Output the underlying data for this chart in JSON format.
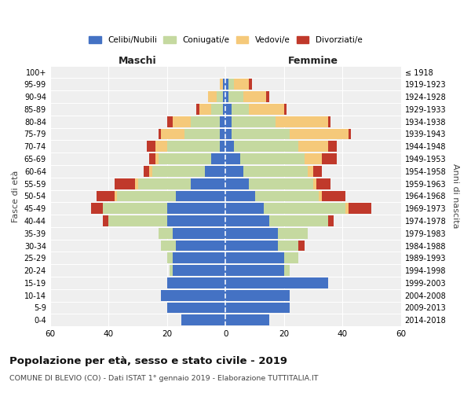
{
  "age_groups": [
    "0-4",
    "5-9",
    "10-14",
    "15-19",
    "20-24",
    "25-29",
    "30-34",
    "35-39",
    "40-44",
    "45-49",
    "50-54",
    "55-59",
    "60-64",
    "65-69",
    "70-74",
    "75-79",
    "80-84",
    "85-89",
    "90-94",
    "95-99",
    "100+"
  ],
  "birth_years": [
    "2014-2018",
    "2009-2013",
    "2004-2008",
    "1999-2003",
    "1994-1998",
    "1989-1993",
    "1984-1988",
    "1979-1983",
    "1974-1978",
    "1969-1973",
    "1964-1968",
    "1959-1963",
    "1954-1958",
    "1949-1953",
    "1944-1948",
    "1939-1943",
    "1934-1938",
    "1929-1933",
    "1924-1928",
    "1919-1923",
    "≤ 1918"
  ],
  "male": {
    "celibi": [
      15,
      20,
      22,
      20,
      18,
      18,
      17,
      18,
      20,
      20,
      17,
      12,
      7,
      5,
      2,
      2,
      2,
      1,
      1,
      1,
      0
    ],
    "coniugati": [
      0,
      0,
      0,
      0,
      1,
      2,
      5,
      5,
      20,
      22,
      20,
      18,
      18,
      18,
      18,
      12,
      10,
      4,
      2,
      0,
      0
    ],
    "vedovi": [
      0,
      0,
      0,
      0,
      0,
      0,
      0,
      0,
      0,
      0,
      1,
      1,
      1,
      1,
      4,
      8,
      6,
      4,
      3,
      1,
      0
    ],
    "divorziati": [
      0,
      0,
      0,
      0,
      0,
      0,
      0,
      0,
      2,
      4,
      6,
      7,
      2,
      2,
      3,
      1,
      2,
      1,
      0,
      0,
      0
    ]
  },
  "female": {
    "nubili": [
      15,
      22,
      22,
      35,
      20,
      20,
      18,
      18,
      15,
      13,
      10,
      8,
      6,
      5,
      3,
      2,
      2,
      2,
      1,
      1,
      0
    ],
    "coniugate": [
      0,
      0,
      0,
      0,
      2,
      5,
      7,
      10,
      20,
      28,
      22,
      22,
      22,
      22,
      22,
      20,
      15,
      6,
      5,
      2,
      0
    ],
    "vedove": [
      0,
      0,
      0,
      0,
      0,
      0,
      0,
      0,
      0,
      1,
      1,
      1,
      2,
      6,
      10,
      20,
      18,
      12,
      8,
      5,
      0
    ],
    "divorziate": [
      0,
      0,
      0,
      0,
      0,
      0,
      2,
      0,
      2,
      8,
      8,
      5,
      3,
      5,
      3,
      1,
      1,
      1,
      1,
      1,
      0
    ]
  },
  "colors": {
    "celibi": "#4472c4",
    "coniugati": "#c5d9a0",
    "vedovi": "#f5c97a",
    "divorziati": "#c0392b"
  },
  "xlim": 60,
  "title": "Popolazione per età, sesso e stato civile - 2019",
  "subtitle": "COMUNE DI BLEVIO (CO) - Dati ISTAT 1° gennaio 2019 - Elaborazione TUTTITALIA.IT",
  "ylabel_left": "Fasce di età",
  "ylabel_right": "Anni di nascita",
  "xlabel_left": "Maschi",
  "xlabel_right": "Femmine",
  "bg_color": "#efefef"
}
